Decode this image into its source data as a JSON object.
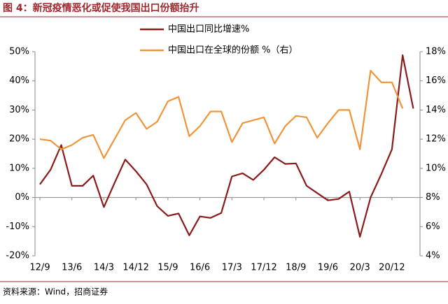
{
  "chart_data": {
    "type": "line",
    "title": "图 4：新冠疫情恶化或促使我国出口份额抬升",
    "source": "资料来源：Wind，招商证券",
    "categories": [
      "12/9",
      null,
      null,
      "13/6",
      null,
      null,
      "14/3",
      null,
      null,
      "14/12",
      null,
      null,
      "15/9",
      null,
      null,
      "16/6",
      null,
      null,
      "17/3",
      null,
      null,
      "17/12",
      null,
      null,
      "18/9",
      null,
      null,
      "19/6",
      null,
      null,
      "20/3",
      null,
      null,
      "20/12",
      null,
      null
    ],
    "series": [
      {
        "name": "中国出口同比增速%",
        "color": "#8B1A1A",
        "axis": "y",
        "values": [
          4.5,
          9.5,
          18,
          4,
          4,
          7.5,
          -3.3,
          5,
          13,
          9,
          4.5,
          -3,
          -6.3,
          -5.5,
          -13,
          -6.5,
          -7,
          -5.3,
          7.2,
          8.3,
          6,
          9.5,
          13.8,
          11.5,
          11.7,
          4,
          1.5,
          -1,
          -0.5,
          2,
          -13.5,
          0,
          8,
          16.5,
          48.8,
          30.5
        ]
      },
      {
        "name": "中国出口在全球的份额 %（右）",
        "color": "#F0943A",
        "axis": "y2",
        "values": [
          12.0,
          11.9,
          11.3,
          11.6,
          12.1,
          12.3,
          10.7,
          12.0,
          13.3,
          13.8,
          12.7,
          13.2,
          14.6,
          14.9,
          12.2,
          12.9,
          13.9,
          13.9,
          11.8,
          13.1,
          13.3,
          13.5,
          11.7,
          12.9,
          13.6,
          13.5,
          12.1,
          13.1,
          14.0,
          14.0,
          11.3,
          16.7,
          15.9,
          15.9,
          14.1,
          null
        ]
      }
    ],
    "ylim": [
      -20,
      50
    ],
    "yticks": [
      {
        "value": -20,
        "label": "-20%"
      },
      {
        "value": -10,
        "label": "-10%"
      },
      {
        "value": 0,
        "label": "0%"
      },
      {
        "value": 10,
        "label": "10%"
      },
      {
        "value": 20,
        "label": "20%"
      },
      {
        "value": 30,
        "label": "30%"
      },
      {
        "value": 40,
        "label": "40%"
      },
      {
        "value": 50,
        "label": "50%"
      }
    ],
    "y2lim": [
      4,
      18
    ],
    "y2ticks": [
      {
        "value": 4,
        "label": "4%"
      },
      {
        "value": 6,
        "label": "6%"
      },
      {
        "value": 8,
        "label": "8%"
      },
      {
        "value": 10,
        "label": "10%"
      },
      {
        "value": 12,
        "label": "12%"
      },
      {
        "value": 14,
        "label": "14%"
      },
      {
        "value": 16,
        "label": "16%"
      },
      {
        "value": 18,
        "label": "18%"
      }
    ]
  }
}
